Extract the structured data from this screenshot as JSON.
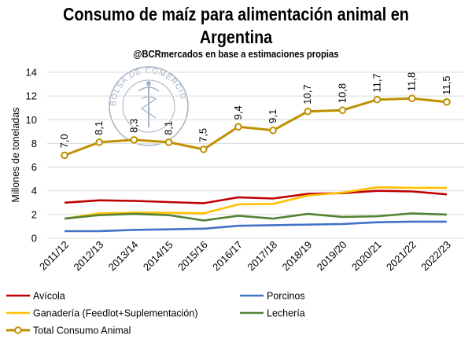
{
  "title_line1": "Consumo de maíz para alimentación animal en",
  "title_line2": "Argentina",
  "subtitle": "@BCRmercados  en base a estimaciones propias",
  "seal_text": "BOLSA DE COMERCIO DE ROSARIO",
  "colors": {
    "avicola": "#c00000",
    "porcinos": "#4472c4",
    "ganaderia": "#ffc000",
    "lecheria": "#548235",
    "total": "#bf9000",
    "grid": "#d9d9d9",
    "seal": "#8497b0"
  },
  "chart_data": {
    "type": "line",
    "title": "Consumo de maíz para alimentación animal en Argentina",
    "subtitle": "@BCRmercados  en base a estimaciones propias",
    "xlabel": "",
    "ylabel": "Millones de toneladas",
    "ylim": [
      0,
      14
    ],
    "yticks": [
      0,
      2,
      4,
      6,
      8,
      10,
      12,
      14
    ],
    "grid": true,
    "legend_position": "bottom",
    "categories": [
      "2011/12",
      "2012/13",
      "2013/14",
      "2014/15",
      "2015/16",
      "2016/17",
      "2017/18",
      "2018/19",
      "2019/20",
      "2020/21",
      "2021/22",
      "2022/23"
    ],
    "series": [
      {
        "key": "avicola",
        "name": "Avícola",
        "values": [
          3.0,
          3.2,
          3.15,
          3.05,
          2.95,
          3.45,
          3.35,
          3.75,
          3.8,
          4.0,
          3.95,
          3.7
        ]
      },
      {
        "key": "porcinos",
        "name": "Porcinos",
        "values": [
          0.6,
          0.6,
          0.7,
          0.75,
          0.8,
          1.05,
          1.1,
          1.15,
          1.2,
          1.35,
          1.4,
          1.4
        ]
      },
      {
        "key": "ganaderia",
        "name": "Ganadería (Feedlot+Suplementación)",
        "values": [
          1.65,
          2.1,
          2.15,
          2.15,
          2.1,
          2.85,
          2.9,
          3.6,
          3.85,
          4.3,
          4.25,
          4.25
        ]
      },
      {
        "key": "lecheria",
        "name": "Lechería",
        "values": [
          1.65,
          1.95,
          2.05,
          1.95,
          1.5,
          1.9,
          1.65,
          2.05,
          1.8,
          1.85,
          2.1,
          2.0
        ]
      },
      {
        "key": "total",
        "name": "Total Consumo Animal",
        "values": [
          7.0,
          8.1,
          8.3,
          8.1,
          7.5,
          9.4,
          9.1,
          10.7,
          10.8,
          11.7,
          11.8,
          11.5
        ],
        "data_labels": [
          "7,0",
          "8,1",
          "8,3",
          "8,1",
          "7,5",
          "9,4",
          "9,1",
          "10,7",
          "10,8",
          "11,7",
          "11,8",
          "11,5"
        ]
      }
    ]
  }
}
